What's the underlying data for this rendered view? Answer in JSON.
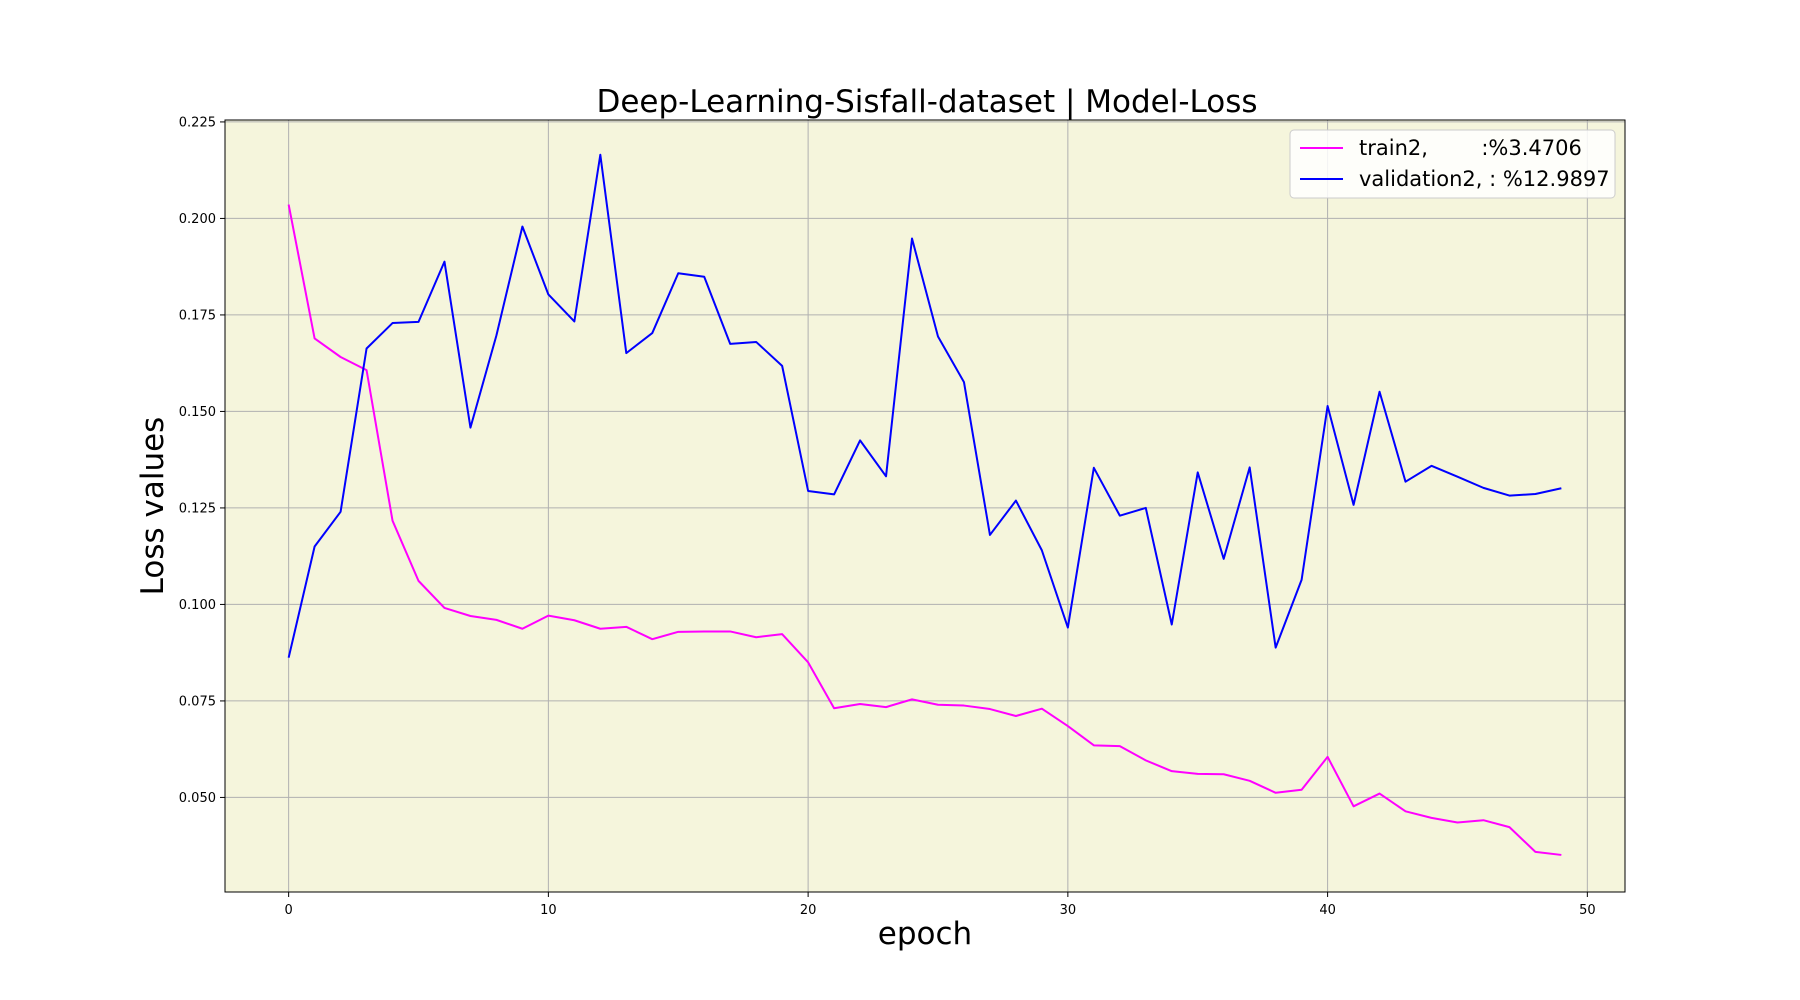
{
  "chart_data": {
    "type": "line",
    "title": "Deep-Learning-Sisfall-dataset  | Model-Loss",
    "xlabel": "epoch",
    "ylabel": "Loss values",
    "xlim": [
      -2.45,
      51.45
    ],
    "ylim": [
      0.0255,
      0.2255
    ],
    "xticks": [
      0,
      10,
      20,
      30,
      40,
      50
    ],
    "yticks": [
      0.05,
      0.075,
      0.1,
      0.125,
      0.15,
      0.175,
      0.2,
      0.225
    ],
    "xtick_labels": [
      "0",
      "10",
      "20",
      "30",
      "40",
      "50"
    ],
    "ytick_labels": [
      "0.050",
      "0.075",
      "0.100",
      "0.125",
      "0.150",
      "0.175",
      "0.200",
      "0.225"
    ],
    "grid": true,
    "plot_background": "#f5f5dc",
    "legend_position": "top-right",
    "x": [
      0,
      1,
      2,
      3,
      4,
      5,
      6,
      7,
      8,
      9,
      10,
      11,
      12,
      13,
      14,
      15,
      16,
      17,
      18,
      19,
      20,
      21,
      22,
      23,
      24,
      25,
      26,
      27,
      28,
      29,
      30,
      31,
      32,
      33,
      34,
      35,
      36,
      37,
      38,
      39,
      40,
      41,
      42,
      43,
      44,
      45,
      46,
      47,
      48,
      49
    ],
    "series": [
      {
        "name": "train2,        :%3.4706",
        "color": "#ff00ff",
        "values": [
          0.2036,
          0.1689,
          0.1641,
          0.1607,
          0.1217,
          0.1061,
          0.0991,
          0.097,
          0.096,
          0.0937,
          0.0971,
          0.0959,
          0.0937,
          0.0942,
          0.091,
          0.0929,
          0.093,
          0.093,
          0.0915,
          0.0923,
          0.085,
          0.0731,
          0.0742,
          0.0734,
          0.0754,
          0.074,
          0.0738,
          0.0729,
          0.0711,
          0.073,
          0.0685,
          0.0635,
          0.0633,
          0.0596,
          0.0568,
          0.0561,
          0.056,
          0.0543,
          0.0512,
          0.052,
          0.0605,
          0.0477,
          0.051,
          0.0464,
          0.0447,
          0.0435,
          0.0441,
          0.0423,
          0.0359,
          0.0351
        ]
      },
      {
        "name": "validation2, : %12.9897",
        "color": "#0000ff",
        "values": [
          0.0862,
          0.115,
          0.124,
          0.1663,
          0.1729,
          0.1732,
          0.1888,
          0.1458,
          0.1697,
          0.1979,
          0.1803,
          0.1733,
          0.2165,
          0.1651,
          0.1703,
          0.1858,
          0.1849,
          0.1675,
          0.168,
          0.1618,
          0.1294,
          0.1285,
          0.1425,
          0.1332,
          0.1948,
          0.1694,
          0.1576,
          0.118,
          0.1269,
          0.114,
          0.094,
          0.1354,
          0.123,
          0.125,
          0.0948,
          0.1342,
          0.1118,
          0.1355,
          0.0888,
          0.1064,
          0.1514,
          0.1258,
          0.1551,
          0.1318,
          0.1359,
          0.1331,
          0.1302,
          0.1282,
          0.1286,
          0.1301
        ]
      }
    ]
  }
}
